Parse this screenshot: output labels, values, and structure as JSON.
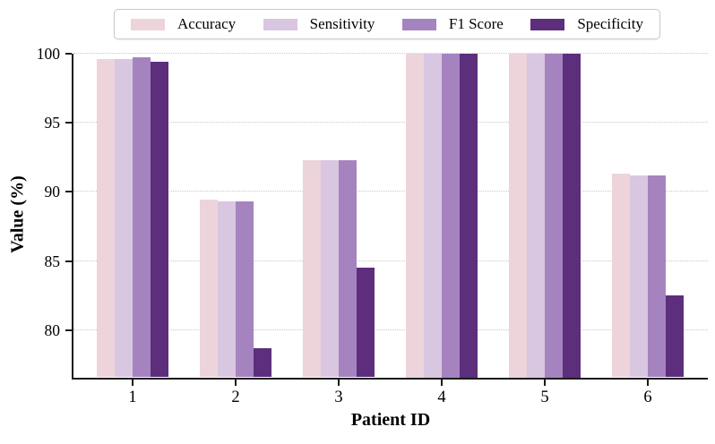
{
  "chart_data": {
    "type": "bar",
    "title": "",
    "xlabel": "Patient ID",
    "ylabel": "Value (%)",
    "categories": [
      "1",
      "2",
      "3",
      "4",
      "5",
      "6"
    ],
    "series": [
      {
        "name": "Accuracy",
        "color": "#ecd4da",
        "values": [
          99.6,
          89.4,
          92.3,
          100,
          100,
          91.3
        ]
      },
      {
        "name": "Sensitivity",
        "color": "#d9c6e1",
        "values": [
          99.6,
          89.3,
          92.3,
          100,
          100,
          91.2
        ]
      },
      {
        "name": "F1 Score",
        "color": "#a583bf",
        "values": [
          99.7,
          89.3,
          92.3,
          100,
          100,
          91.2
        ]
      },
      {
        "name": "Specificity",
        "color": "#5d2e7c",
        "values": [
          99.4,
          78.7,
          84.5,
          100,
          100,
          82.5
        ]
      }
    ],
    "ylim": [
      76.6,
      100
    ],
    "yticks": [
      80,
      85,
      90,
      95,
      100
    ],
    "grid": "horizontal-dotted",
    "legend_position": "top-center"
  },
  "colors": {
    "background": "#ffffff",
    "axis": "#1a1a1a",
    "grid": "#c8c8c8",
    "legend_border": "#c9c9c9"
  }
}
